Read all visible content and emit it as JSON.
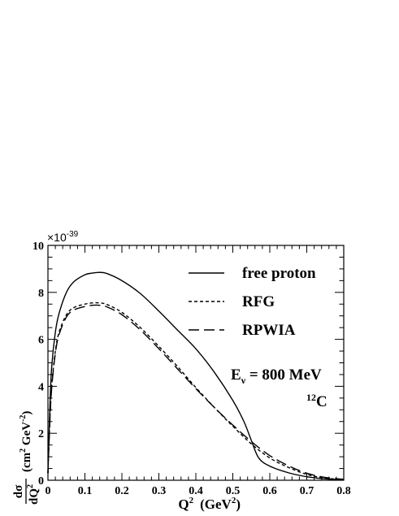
{
  "chart_data": {
    "type": "line",
    "multiplier": "×10",
    "multiplier_exp": "-39",
    "xlabel": {
      "base": "Q",
      "sup": "2",
      "unit_open": "(GeV",
      "unit_sup": "2",
      "unit_close": ")"
    },
    "ylabel": {
      "frac_num": "dσ",
      "frac_den": "dQ",
      "frac_den_sup": "2",
      "unit_open": "(cm",
      "unit_sup1": "2",
      "unit_mid": " GeV",
      "unit_sup2": "-2",
      "unit_close": ")"
    },
    "xlim": [
      0,
      0.8
    ],
    "ylim": [
      0,
      10
    ],
    "x_ticks": [
      0,
      0.1,
      0.2,
      0.3,
      0.4,
      0.5,
      0.6,
      0.7,
      0.8
    ],
    "x_tick_labels": [
      "0",
      "0.1",
      "0.2",
      "0.3",
      "0.4",
      "0.5",
      "0.6",
      "0.7",
      "0.8"
    ],
    "y_ticks": [
      0,
      2,
      4,
      6,
      8,
      10
    ],
    "y_tick_labels": [
      "0",
      "2",
      "4",
      "6",
      "8",
      "10"
    ],
    "grid": false,
    "legend_position": "top-right",
    "series": [
      {
        "name": "free proton",
        "style": "solid",
        "color": "#000000",
        "x": [
          0,
          0.005,
          0.01,
          0.02,
          0.03,
          0.05,
          0.07,
          0.1,
          0.12,
          0.14,
          0.16,
          0.2,
          0.25,
          0.3,
          0.35,
          0.4,
          0.45,
          0.5,
          0.53,
          0.55,
          0.57,
          0.6,
          0.65,
          0.7,
          0.75,
          0.8
        ],
        "y": [
          0.3,
          3.0,
          4.8,
          6.3,
          7.1,
          8.0,
          8.45,
          8.75,
          8.82,
          8.85,
          8.8,
          8.5,
          7.95,
          7.2,
          6.4,
          5.6,
          4.6,
          3.4,
          2.5,
          1.7,
          0.95,
          0.6,
          0.32,
          0.15,
          0.06,
          0.02
        ]
      },
      {
        "name": "RFG",
        "style": "dotted",
        "color": "#000000",
        "x": [
          0,
          0.005,
          0.01,
          0.02,
          0.03,
          0.05,
          0.07,
          0.1,
          0.12,
          0.14,
          0.16,
          0.2,
          0.25,
          0.3,
          0.35,
          0.4,
          0.45,
          0.5,
          0.55,
          0.6,
          0.65,
          0.7,
          0.75,
          0.8
        ],
        "y": [
          0.3,
          2.5,
          4.0,
          5.5,
          6.3,
          7.05,
          7.35,
          7.5,
          7.55,
          7.55,
          7.48,
          7.15,
          6.5,
          5.7,
          4.85,
          3.95,
          3.1,
          2.3,
          1.55,
          0.95,
          0.55,
          0.25,
          0.09,
          0.03
        ]
      },
      {
        "name": "RPWIA",
        "style": "dashed",
        "color": "#000000",
        "x": [
          0,
          0.005,
          0.01,
          0.02,
          0.03,
          0.05,
          0.07,
          0.1,
          0.12,
          0.14,
          0.16,
          0.2,
          0.25,
          0.3,
          0.35,
          0.4,
          0.45,
          0.5,
          0.55,
          0.6,
          0.65,
          0.7,
          0.75,
          0.8
        ],
        "y": [
          0.3,
          2.4,
          3.9,
          5.4,
          6.2,
          6.95,
          7.25,
          7.4,
          7.45,
          7.45,
          7.38,
          7.05,
          6.4,
          5.6,
          4.75,
          3.9,
          3.1,
          2.35,
          1.65,
          1.05,
          0.62,
          0.3,
          0.12,
          0.04
        ]
      }
    ],
    "annotations": {
      "energy_prefix": "E",
      "energy_sub": "ν",
      "energy_value": " = 800 MeV",
      "nucleus_sup": "12",
      "nucleus": "C"
    }
  }
}
